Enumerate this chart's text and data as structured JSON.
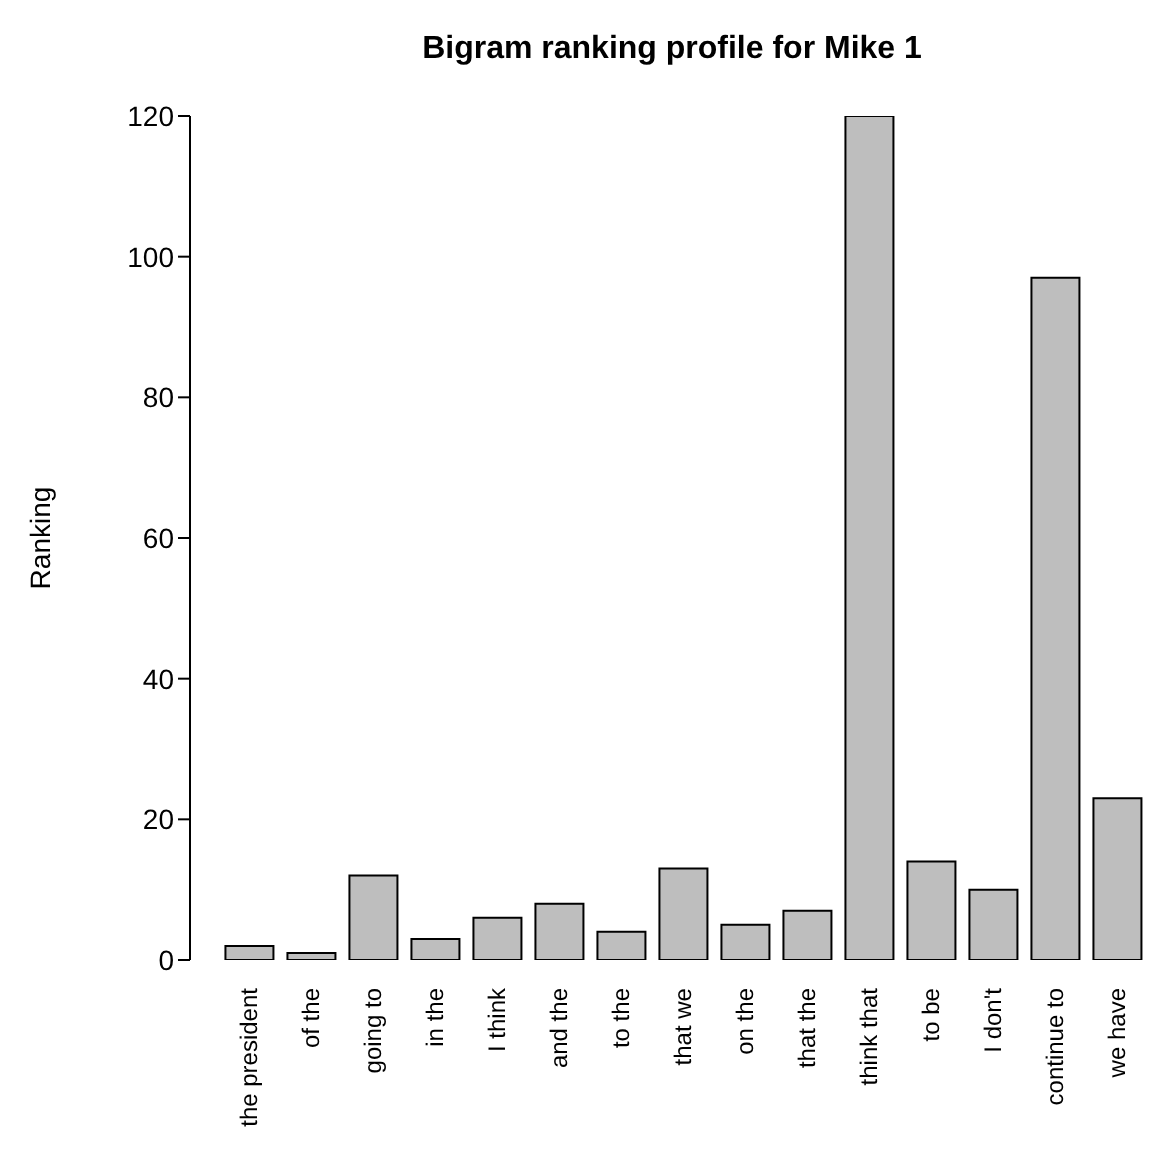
{
  "chart_data": {
    "type": "bar",
    "title": "Bigram ranking profile for Mike 1",
    "ylabel": "Ranking",
    "categories": [
      "the president",
      "of the",
      "going to",
      "in the",
      "I think",
      "and the",
      "to the",
      "that we",
      "on the",
      "that the",
      "think that",
      "to be",
      "I don't",
      "continue to",
      "we have"
    ],
    "values": [
      2,
      1,
      12,
      3,
      6,
      8,
      4,
      13,
      5,
      7,
      120,
      14,
      10,
      97,
      23
    ],
    "color": "#bebebe",
    "ylim": [
      0,
      120
    ],
    "yticks": [
      0,
      20,
      40,
      60,
      80,
      100,
      120
    ],
    "grid": false
  }
}
